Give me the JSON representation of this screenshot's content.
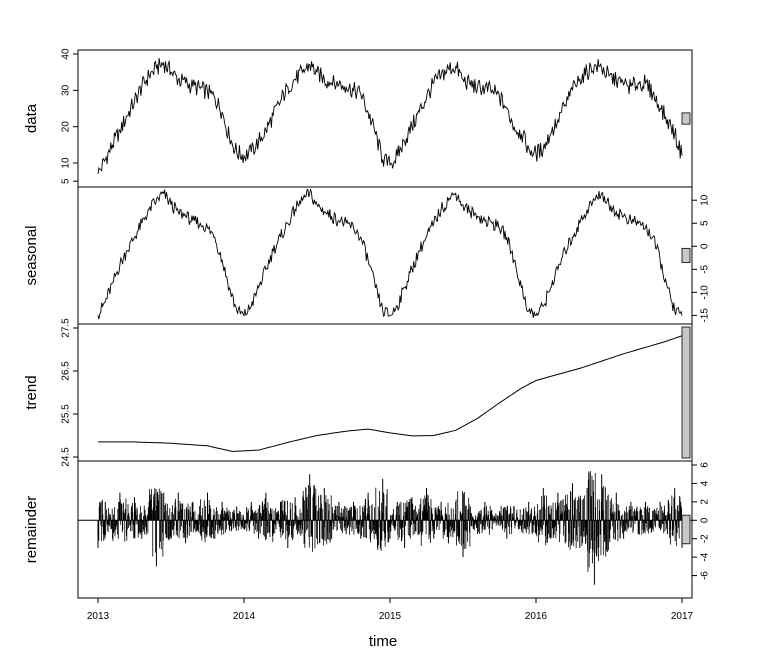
{
  "chart_data": {
    "type": "line",
    "title": "",
    "xlabel": "time",
    "xlim": [
      2013,
      2017
    ],
    "x_ticks": [
      {
        "value": 2013,
        "label": "2013"
      },
      {
        "value": 2014,
        "label": "2014"
      },
      {
        "value": 2015,
        "label": "2015"
      },
      {
        "value": 2016,
        "label": "2016"
      },
      {
        "value": 2017,
        "label": "2017"
      }
    ],
    "grid": false,
    "legend": "none",
    "panels": [
      {
        "key": "data",
        "ylabel": "data",
        "axis_side": "left",
        "ylim": [
          4.5,
          40
        ],
        "yticks": [
          5,
          10,
          20,
          30,
          40
        ],
        "ytick_labels": [
          "5",
          "10",
          "20",
          "30",
          "40"
        ],
        "range_bar_side": "right",
        "points": [
          [
            2013.0,
            7
          ],
          [
            2013.05,
            11
          ],
          [
            2013.1,
            15
          ],
          [
            2013.15,
            19
          ],
          [
            2013.2,
            23
          ],
          [
            2013.25,
            27
          ],
          [
            2013.3,
            31
          ],
          [
            2013.35,
            34
          ],
          [
            2013.4,
            36
          ],
          [
            2013.45,
            37.5
          ],
          [
            2013.5,
            35
          ],
          [
            2013.55,
            33
          ],
          [
            2013.6,
            32
          ],
          [
            2013.65,
            31
          ],
          [
            2013.7,
            30.5
          ],
          [
            2013.75,
            29.5
          ],
          [
            2013.8,
            28
          ],
          [
            2013.85,
            24
          ],
          [
            2013.9,
            17
          ],
          [
            2013.95,
            13
          ],
          [
            2014.0,
            12
          ],
          [
            2014.05,
            13
          ],
          [
            2014.1,
            16
          ],
          [
            2014.15,
            19
          ],
          [
            2014.2,
            23
          ],
          [
            2014.25,
            27
          ],
          [
            2014.3,
            31
          ],
          [
            2014.35,
            33
          ],
          [
            2014.4,
            35
          ],
          [
            2014.45,
            37
          ],
          [
            2014.5,
            35
          ],
          [
            2014.55,
            33
          ],
          [
            2014.6,
            32
          ],
          [
            2014.65,
            31.5
          ],
          [
            2014.7,
            31
          ],
          [
            2014.75,
            30
          ],
          [
            2014.8,
            29
          ],
          [
            2014.85,
            24
          ],
          [
            2014.9,
            18
          ],
          [
            2014.95,
            11
          ],
          [
            2015.0,
            9.5
          ],
          [
            2015.05,
            12
          ],
          [
            2015.1,
            16
          ],
          [
            2015.15,
            20
          ],
          [
            2015.2,
            24
          ],
          [
            2015.25,
            28
          ],
          [
            2015.3,
            32
          ],
          [
            2015.35,
            34
          ],
          [
            2015.4,
            36
          ],
          [
            2015.45,
            36.5
          ],
          [
            2015.5,
            33
          ],
          [
            2015.55,
            31.5
          ],
          [
            2015.6,
            31
          ],
          [
            2015.65,
            30.5
          ],
          [
            2015.7,
            30
          ],
          [
            2015.75,
            28
          ],
          [
            2015.8,
            25
          ],
          [
            2015.85,
            20
          ],
          [
            2015.9,
            18
          ],
          [
            2015.95,
            14
          ],
          [
            2016.0,
            12.5
          ],
          [
            2016.05,
            14
          ],
          [
            2016.1,
            18
          ],
          [
            2016.15,
            22
          ],
          [
            2016.2,
            26
          ],
          [
            2016.25,
            30
          ],
          [
            2016.3,
            33
          ],
          [
            2016.35,
            35
          ],
          [
            2016.4,
            37
          ],
          [
            2016.45,
            36
          ],
          [
            2016.5,
            34
          ],
          [
            2016.55,
            32.5
          ],
          [
            2016.6,
            31.5
          ],
          [
            2016.65,
            31
          ],
          [
            2016.7,
            32
          ],
          [
            2016.75,
            32
          ],
          [
            2016.8,
            29
          ],
          [
            2016.85,
            25
          ],
          [
            2016.9,
            22
          ],
          [
            2016.95,
            18
          ],
          [
            2017.0,
            12
          ]
        ]
      },
      {
        "key": "seasonal",
        "ylabel": "seasonal",
        "axis_side": "right",
        "ylim": [
          -16,
          12
        ],
        "yticks": [
          -15,
          -10,
          -5,
          0,
          5,
          10
        ],
        "ytick_labels": [
          "-15",
          "-10",
          "-5",
          "0",
          "5",
          "10"
        ],
        "range_bar_side": "right",
        "points": [
          [
            2013.0,
            -15
          ],
          [
            2013.05,
            -12
          ],
          [
            2013.1,
            -8
          ],
          [
            2013.15,
            -4
          ],
          [
            2013.2,
            -1
          ],
          [
            2013.25,
            2
          ],
          [
            2013.3,
            5
          ],
          [
            2013.35,
            8
          ],
          [
            2013.4,
            10
          ],
          [
            2013.45,
            11.5
          ],
          [
            2013.5,
            9
          ],
          [
            2013.55,
            7.5
          ],
          [
            2013.6,
            6.5
          ],
          [
            2013.65,
            5.5
          ],
          [
            2013.7,
            5
          ],
          [
            2013.75,
            4
          ],
          [
            2013.8,
            2
          ],
          [
            2013.85,
            -3
          ],
          [
            2013.9,
            -9
          ],
          [
            2013.95,
            -14
          ],
          [
            2014.0,
            -15
          ],
          [
            2014.05,
            -13
          ],
          [
            2014.1,
            -9
          ],
          [
            2014.15,
            -5
          ],
          [
            2014.2,
            -1
          ],
          [
            2014.25,
            2
          ],
          [
            2014.3,
            5
          ],
          [
            2014.35,
            8
          ],
          [
            2014.4,
            10
          ],
          [
            2014.45,
            11.5
          ],
          [
            2014.5,
            9
          ],
          [
            2014.55,
            7.5
          ],
          [
            2014.6,
            6.5
          ],
          [
            2014.65,
            5.5
          ],
          [
            2014.7,
            5
          ],
          [
            2014.75,
            4
          ],
          [
            2014.8,
            2
          ],
          [
            2014.85,
            -3
          ],
          [
            2014.9,
            -9
          ],
          [
            2014.95,
            -14
          ],
          [
            2015.0,
            -15
          ],
          [
            2015.05,
            -13
          ],
          [
            2015.1,
            -9
          ],
          [
            2015.15,
            -5
          ],
          [
            2015.2,
            -1
          ],
          [
            2015.25,
            2
          ],
          [
            2015.3,
            5
          ],
          [
            2015.35,
            8
          ],
          [
            2015.4,
            10
          ],
          [
            2015.45,
            11.5
          ],
          [
            2015.5,
            9
          ],
          [
            2015.55,
            7.5
          ],
          [
            2015.6,
            6.5
          ],
          [
            2015.65,
            5.5
          ],
          [
            2015.7,
            5
          ],
          [
            2015.75,
            4
          ],
          [
            2015.8,
            2
          ],
          [
            2015.85,
            -3
          ],
          [
            2015.9,
            -9
          ],
          [
            2015.95,
            -14
          ],
          [
            2016.0,
            -15
          ],
          [
            2016.05,
            -13
          ],
          [
            2016.1,
            -9
          ],
          [
            2016.15,
            -5
          ],
          [
            2016.2,
            -1
          ],
          [
            2016.25,
            2
          ],
          [
            2016.3,
            5
          ],
          [
            2016.35,
            8
          ],
          [
            2016.4,
            10
          ],
          [
            2016.45,
            11.5
          ],
          [
            2016.5,
            9
          ],
          [
            2016.55,
            7.5
          ],
          [
            2016.6,
            6.5
          ],
          [
            2016.65,
            5.5
          ],
          [
            2016.7,
            5
          ],
          [
            2016.75,
            4
          ],
          [
            2016.8,
            2
          ],
          [
            2016.85,
            -3
          ],
          [
            2016.9,
            -9
          ],
          [
            2016.95,
            -14
          ],
          [
            2017.0,
            -15
          ]
        ]
      },
      {
        "key": "trend",
        "ylabel": "trend",
        "axis_side": "left",
        "ylim": [
          24.5,
          27.5
        ],
        "yticks": [
          24.5,
          25.5,
          26.5,
          27.5
        ],
        "ytick_labels": [
          "24.5",
          "25.5",
          "26.5",
          "27.5"
        ],
        "range_bar_side": "right",
        "points": [
          [
            2013.0,
            24.85
          ],
          [
            2013.25,
            24.85
          ],
          [
            2013.5,
            24.82
          ],
          [
            2013.75,
            24.76
          ],
          [
            2013.92,
            24.63
          ],
          [
            2014.1,
            24.66
          ],
          [
            2014.3,
            24.84
          ],
          [
            2014.5,
            25.0
          ],
          [
            2014.7,
            25.1
          ],
          [
            2014.85,
            25.15
          ],
          [
            2015.0,
            25.06
          ],
          [
            2015.15,
            24.99
          ],
          [
            2015.3,
            25.0
          ],
          [
            2015.45,
            25.12
          ],
          [
            2015.6,
            25.4
          ],
          [
            2015.75,
            25.76
          ],
          [
            2015.9,
            26.1
          ],
          [
            2016.0,
            26.28
          ],
          [
            2016.15,
            26.42
          ],
          [
            2016.3,
            26.56
          ],
          [
            2016.45,
            26.73
          ],
          [
            2016.6,
            26.9
          ],
          [
            2016.75,
            27.05
          ],
          [
            2016.9,
            27.2
          ],
          [
            2017.0,
            27.32
          ]
        ]
      },
      {
        "key": "remainder",
        "ylabel": "remainder",
        "axis_side": "right",
        "ylim": [
          -8,
          6
        ],
        "yticks": [
          -6,
          -4,
          -2,
          0,
          2,
          4,
          6
        ],
        "ytick_labels": [
          "-6",
          "-4",
          "-2",
          "0",
          "2",
          "4",
          "6"
        ],
        "range_bar_side": "right",
        "style": "spikes",
        "points": [
          [
            2013.0,
            -3
          ],
          [
            2013.05,
            2
          ],
          [
            2013.1,
            -2
          ],
          [
            2013.15,
            3
          ],
          [
            2013.2,
            -1
          ],
          [
            2013.25,
            2.5
          ],
          [
            2013.3,
            -2
          ],
          [
            2013.35,
            2
          ],
          [
            2013.4,
            -5
          ],
          [
            2013.45,
            3
          ],
          [
            2013.5,
            -2
          ],
          [
            2013.55,
            3
          ],
          [
            2013.6,
            -2.5
          ],
          [
            2013.65,
            2
          ],
          [
            2013.7,
            -1.5
          ],
          [
            2013.75,
            3
          ],
          [
            2013.8,
            -2
          ],
          [
            2013.85,
            2
          ],
          [
            2013.9,
            -1
          ],
          [
            2013.95,
            1.5
          ],
          [
            2014.0,
            -1
          ],
          [
            2014.05,
            2
          ],
          [
            2014.1,
            -2
          ],
          [
            2014.15,
            3
          ],
          [
            2014.2,
            -1.5
          ],
          [
            2014.25,
            2
          ],
          [
            2014.3,
            -3
          ],
          [
            2014.35,
            2.5
          ],
          [
            2014.4,
            -1
          ],
          [
            2014.45,
            5
          ],
          [
            2014.5,
            -2
          ],
          [
            2014.55,
            3.5
          ],
          [
            2014.6,
            -2
          ],
          [
            2014.65,
            2
          ],
          [
            2014.7,
            -1.5
          ],
          [
            2014.75,
            2
          ],
          [
            2014.8,
            -2
          ],
          [
            2014.85,
            3
          ],
          [
            2014.9,
            -1.5
          ],
          [
            2014.95,
            4.5
          ],
          [
            2015.0,
            -2
          ],
          [
            2015.05,
            2
          ],
          [
            2015.1,
            -3
          ],
          [
            2015.15,
            2.5
          ],
          [
            2015.2,
            -1.5
          ],
          [
            2015.25,
            3.5
          ],
          [
            2015.3,
            -2
          ],
          [
            2015.35,
            2
          ],
          [
            2015.4,
            -2.5
          ],
          [
            2015.45,
            2
          ],
          [
            2015.5,
            -4
          ],
          [
            2015.55,
            1.5
          ],
          [
            2015.6,
            -1.5
          ],
          [
            2015.65,
            2
          ],
          [
            2015.7,
            -1
          ],
          [
            2015.75,
            1
          ],
          [
            2015.8,
            -2
          ],
          [
            2015.85,
            1.5
          ],
          [
            2015.9,
            -1
          ],
          [
            2015.95,
            2
          ],
          [
            2016.0,
            -1.5
          ],
          [
            2016.05,
            3.5
          ],
          [
            2016.1,
            -2
          ],
          [
            2016.15,
            3
          ],
          [
            2016.2,
            -2.5
          ],
          [
            2016.25,
            4
          ],
          [
            2016.3,
            -3
          ],
          [
            2016.35,
            3.5
          ],
          [
            2016.4,
            -7
          ],
          [
            2016.45,
            5
          ],
          [
            2016.5,
            -2
          ],
          [
            2016.55,
            3
          ],
          [
            2016.6,
            -2
          ],
          [
            2016.65,
            2
          ],
          [
            2016.7,
            -1.5
          ],
          [
            2016.75,
            2
          ],
          [
            2016.8,
            -1
          ],
          [
            2016.85,
            2
          ],
          [
            2016.9,
            -1.5
          ],
          [
            2016.95,
            3.5
          ],
          [
            2017.0,
            -3
          ]
        ]
      }
    ]
  }
}
